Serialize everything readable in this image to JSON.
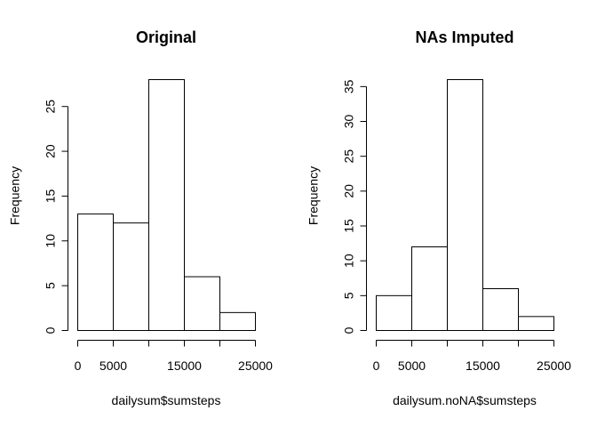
{
  "chart_data": [
    {
      "type": "bar",
      "title": "Original",
      "xlabel": "dailysum$sumsteps",
      "ylabel": "Frequency",
      "bins": [
        [
          0,
          5000
        ],
        [
          5000,
          10000
        ],
        [
          10000,
          15000
        ],
        [
          15000,
          20000
        ],
        [
          20000,
          25000
        ]
      ],
      "values": [
        13,
        12,
        28,
        6,
        2
      ],
      "xlim": [
        0,
        25000
      ],
      "ylim": [
        0,
        28
      ],
      "x_ticks": [
        0,
        5000,
        10000,
        15000,
        20000,
        25000
      ],
      "x_tick_labels": [
        "0",
        "5000",
        "",
        "15000",
        "",
        "25000"
      ],
      "y_ticks": [
        0,
        5,
        10,
        15,
        20,
        25
      ],
      "y_tick_labels": [
        "0",
        "5",
        "10",
        "15",
        "20",
        "25"
      ],
      "grid": false
    },
    {
      "type": "bar",
      "title": "NAs Imputed",
      "xlabel": "dailysum.noNA$sumsteps",
      "ylabel": "Frequency",
      "bins": [
        [
          0,
          5000
        ],
        [
          5000,
          10000
        ],
        [
          10000,
          15000
        ],
        [
          15000,
          20000
        ],
        [
          20000,
          25000
        ]
      ],
      "values": [
        5,
        12,
        36,
        6,
        2
      ],
      "xlim": [
        0,
        25000
      ],
      "ylim": [
        0,
        36
      ],
      "x_ticks": [
        0,
        5000,
        10000,
        15000,
        20000,
        25000
      ],
      "x_tick_labels": [
        "0",
        "5000",
        "",
        "15000",
        "",
        "25000"
      ],
      "y_ticks": [
        0,
        5,
        10,
        15,
        20,
        25,
        30,
        35
      ],
      "y_tick_labels": [
        "0",
        "5",
        "10",
        "15",
        "20",
        "25",
        "30",
        "35"
      ],
      "grid": false
    }
  ]
}
